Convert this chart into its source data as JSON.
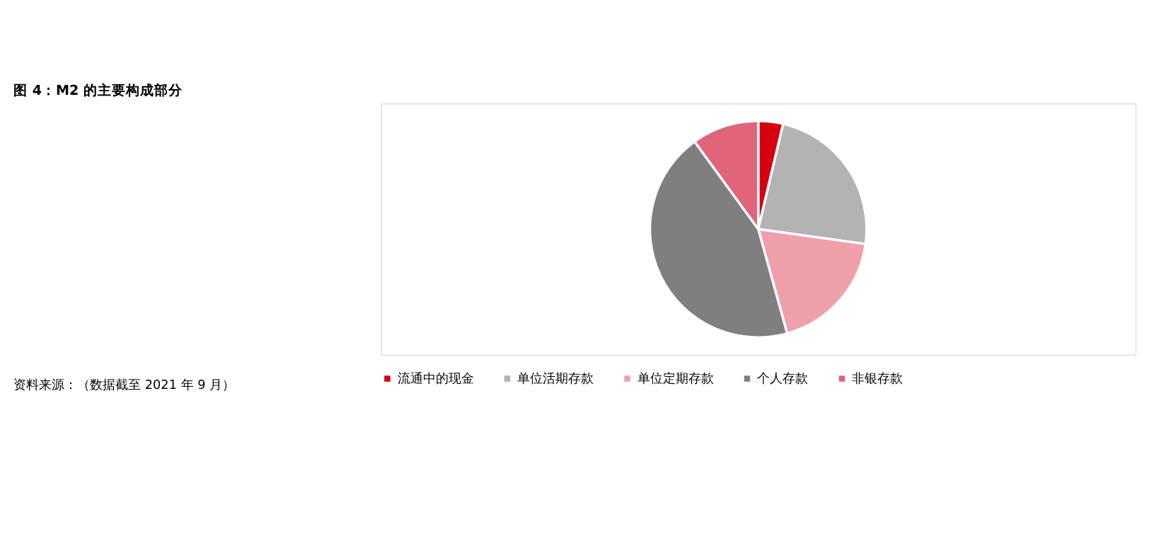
{
  "chart_data": {
    "type": "pie",
    "title": "图 4：M2 的主要构成部分",
    "categories": [
      "流通中的现金",
      "单位活期存款",
      "单位定期存款",
      "个人存款",
      "非银存款"
    ],
    "values": [
      3.7,
      23.5,
      18.5,
      44.3,
      10.0
    ],
    "colors": [
      "#d7000f",
      "#b3b3b3",
      "#f0a0aa",
      "#7f7f7f",
      "#e0647a"
    ],
    "legend": "bottom",
    "annotations": [
      "资料来源：（数据截至 2021 年 9 月）"
    ]
  }
}
